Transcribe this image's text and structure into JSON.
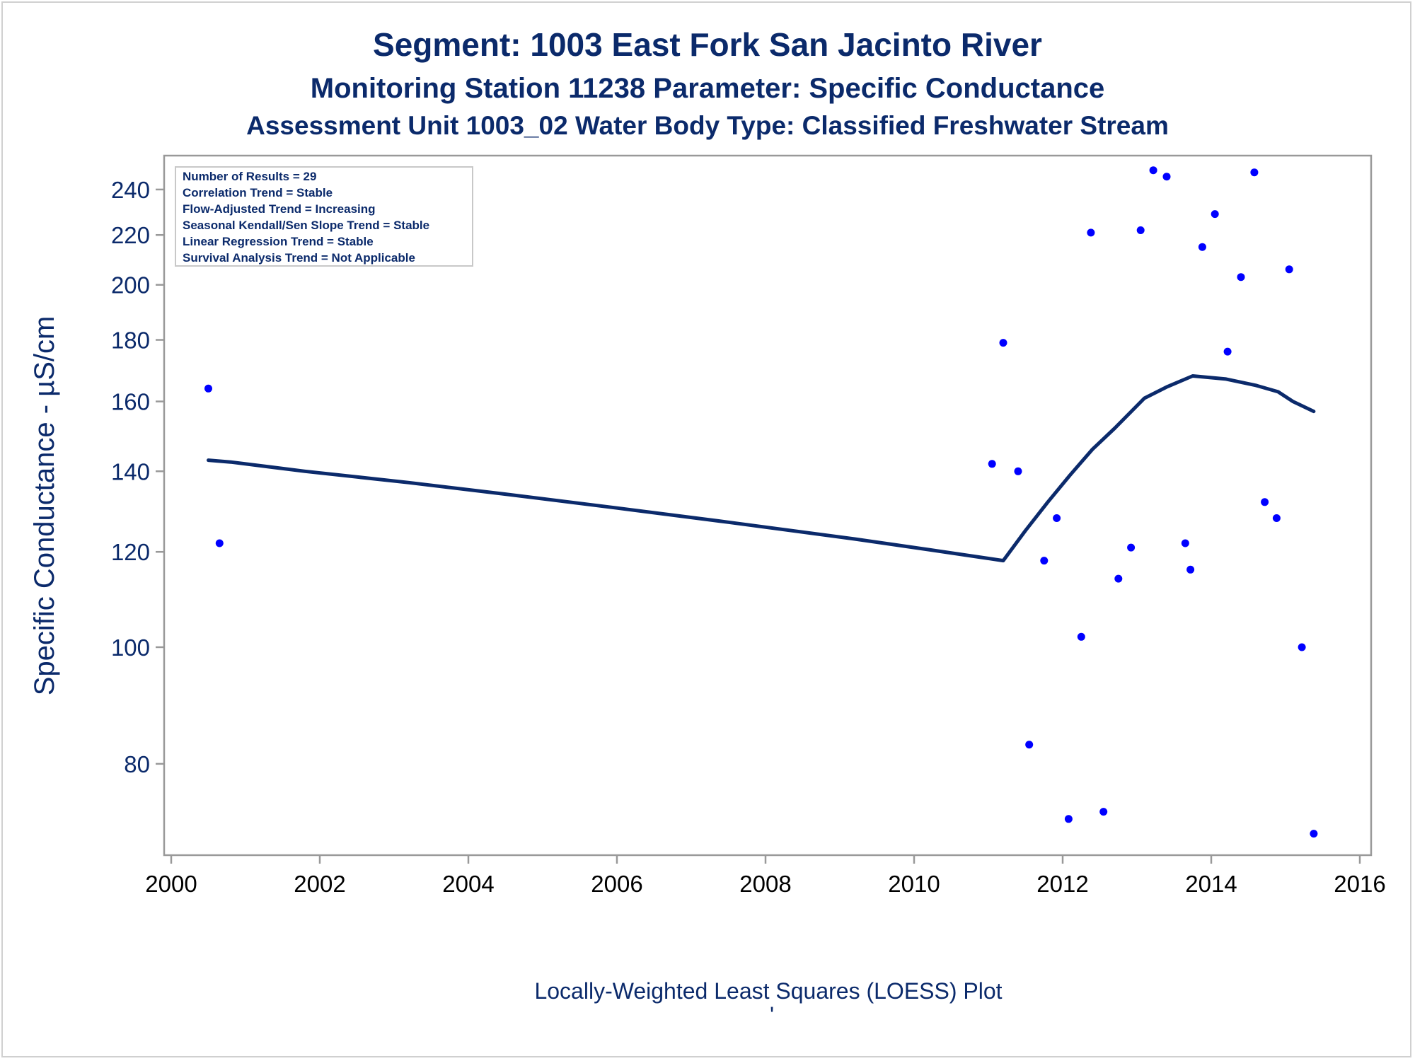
{
  "chart_data": {
    "type": "scatter",
    "title": "Segment: 1003  East Fork San Jacinto River",
    "subtitle": "Monitoring Station 11238 Parameter: Specific Conductance",
    "subtitle2": "Assessment Unit 1003_02   Water Body Type: Classified Freshwater Stream",
    "xlabel": "",
    "ylabel": "Specific Conductance -  µS/cm",
    "footnote": "Locally-Weighted Least Squares (LOESS) Plot",
    "footnote_mark": "'",
    "xlim": [
      2000,
      2016
    ],
    "ylim": [
      68,
      254
    ],
    "y_scale": "log",
    "x_ticks": [
      2000,
      2002,
      2004,
      2006,
      2008,
      2010,
      2012,
      2014,
      2016
    ],
    "y_ticks": [
      80,
      100,
      120,
      140,
      160,
      180,
      200,
      220,
      240
    ],
    "grid": false,
    "colors": {
      "points": "#0000ff",
      "line": "#0b2a6b",
      "text": "#0b2a6b",
      "frame": "#999999"
    },
    "stats_box": [
      "Number of Results = 29",
      "Correlation Trend = Stable",
      "Flow-Adjusted Trend = Increasing",
      "Seasonal Kendall/Sen Slope Trend = Stable",
      "Linear Regression Trend = Stable",
      "Survival Analysis Trend = Not Applicable"
    ],
    "series": [
      {
        "type": "scatter",
        "points": [
          [
            2000.5,
            164
          ],
          [
            2000.65,
            122
          ],
          [
            2011.05,
            142
          ],
          [
            2011.2,
            179
          ],
          [
            2011.4,
            140
          ],
          [
            2011.55,
            83
          ],
          [
            2011.75,
            118
          ],
          [
            2011.92,
            128
          ],
          [
            2012.08,
            72
          ],
          [
            2012.25,
            102
          ],
          [
            2012.38,
            221
          ],
          [
            2012.55,
            73
          ],
          [
            2012.75,
            114
          ],
          [
            2012.92,
            121
          ],
          [
            2013.05,
            222
          ],
          [
            2013.22,
            249
          ],
          [
            2013.4,
            246
          ],
          [
            2013.65,
            122
          ],
          [
            2013.72,
            116
          ],
          [
            2013.88,
            215
          ],
          [
            2014.05,
            229
          ],
          [
            2014.22,
            176
          ],
          [
            2014.4,
            203
          ],
          [
            2014.58,
            248
          ],
          [
            2014.72,
            132
          ],
          [
            2014.88,
            128
          ],
          [
            2015.05,
            206
          ],
          [
            2015.22,
            100
          ],
          [
            2015.38,
            70
          ]
        ]
      },
      {
        "type": "line",
        "points": [
          [
            2000.5,
            143
          ],
          [
            2000.8,
            142.5
          ],
          [
            2001.8,
            140
          ],
          [
            2003.2,
            137
          ],
          [
            2004.5,
            134
          ],
          [
            2006,
            130.5
          ],
          [
            2007.5,
            127
          ],
          [
            2009.2,
            123
          ],
          [
            2010.2,
            120.5
          ],
          [
            2011.0,
            118.5
          ],
          [
            2011.2,
            118
          ],
          [
            2011.5,
            125
          ],
          [
            2011.8,
            132
          ],
          [
            2012.1,
            139
          ],
          [
            2012.4,
            146
          ],
          [
            2012.7,
            152
          ],
          [
            2013.1,
            161
          ],
          [
            2013.4,
            164.5
          ],
          [
            2013.75,
            168
          ],
          [
            2014.2,
            167
          ],
          [
            2014.6,
            165
          ],
          [
            2014.9,
            163
          ],
          [
            2015.1,
            160
          ],
          [
            2015.38,
            157
          ]
        ]
      }
    ]
  }
}
